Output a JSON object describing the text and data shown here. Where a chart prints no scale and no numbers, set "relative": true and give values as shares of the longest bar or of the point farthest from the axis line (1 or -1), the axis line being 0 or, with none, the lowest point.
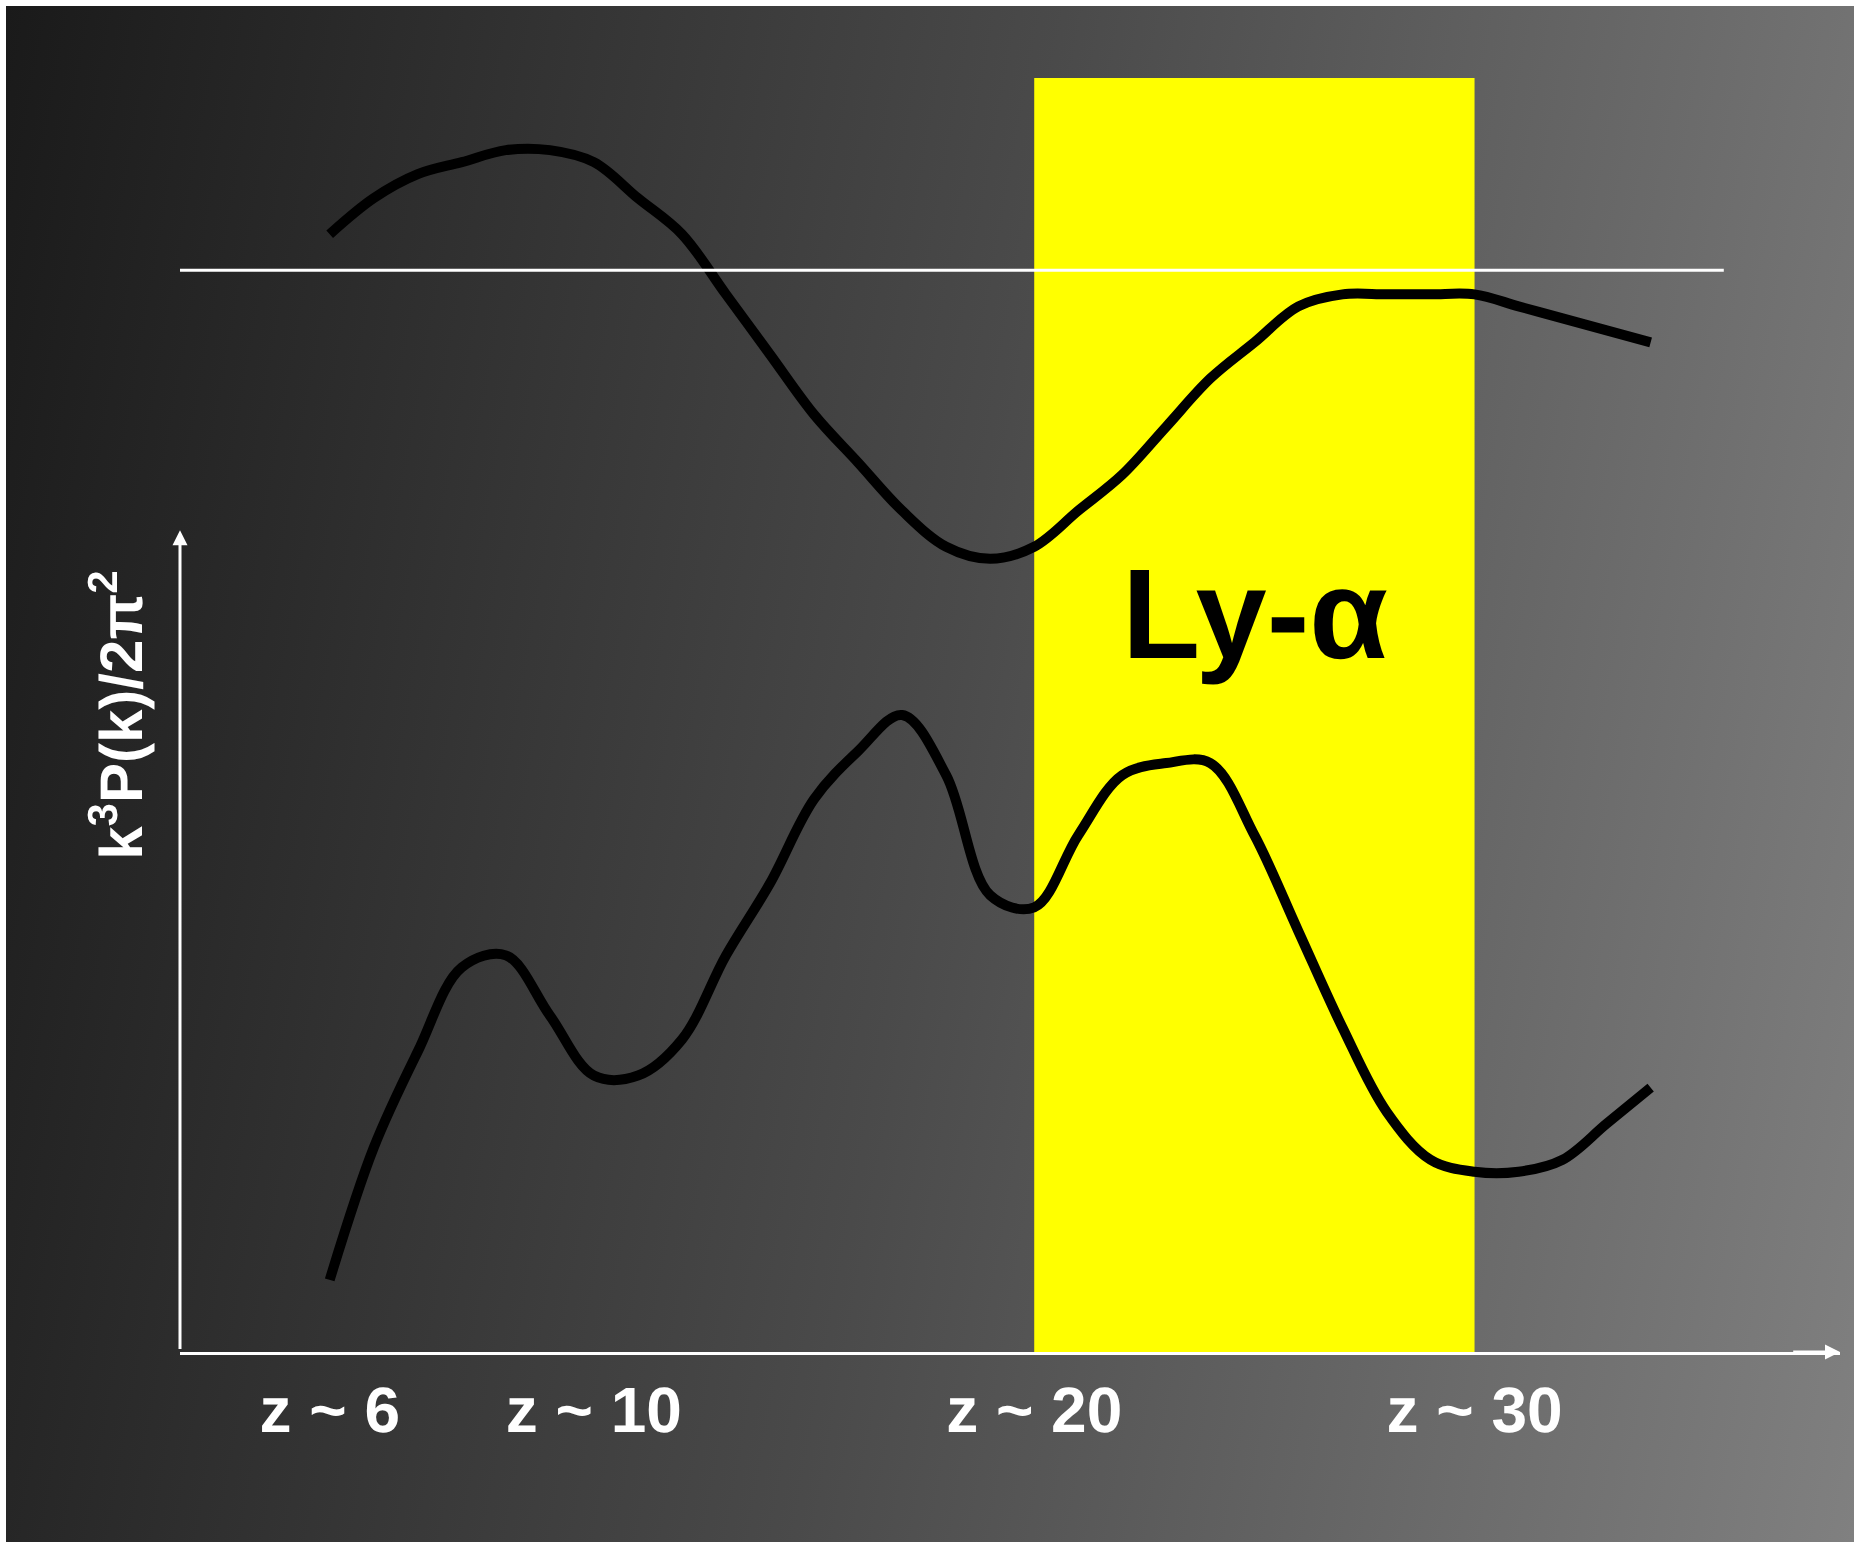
{
  "chart_data": {
    "type": "line",
    "relative": true,
    "ylabel": "k$^{3}$P(k)/2π$^{2}$",
    "categories": [
      "z ~ 6",
      null,
      null,
      null,
      null,
      null,
      "z ~ 10",
      null,
      null,
      null,
      null,
      null,
      null,
      null,
      null,
      null,
      "z ~ 20",
      null,
      null,
      null,
      null,
      null,
      null,
      null,
      null,
      null,
      "z ~ 30",
      null,
      null,
      null,
      null
    ],
    "grid": false,
    "marker": "none",
    "line_style": "solid",
    "series": [
      {
        "color": "#000000",
        "values": [
          0.93,
          0.96,
          0.98,
          0.99,
          1.0,
          1.0,
          0.99,
          0.96,
          0.93,
          0.88,
          0.83,
          0.78,
          0.74,
          0.7,
          0.67,
          0.66,
          0.67,
          0.7,
          0.73,
          0.77,
          0.81,
          0.84,
          0.87,
          0.88,
          0.88,
          0.88,
          0.88,
          0.87,
          0.86,
          0.85,
          0.84
        ]
      },
      {
        "color": "#000000",
        "values": [
          0.06,
          0.17,
          0.25,
          0.32,
          0.33,
          0.28,
          0.23,
          0.23,
          0.26,
          0.33,
          0.39,
          0.46,
          0.5,
          0.53,
          0.48,
          0.38,
          0.37,
          0.43,
          0.48,
          0.49,
          0.49,
          0.43,
          0.35,
          0.27,
          0.2,
          0.16,
          0.15,
          0.15,
          0.16,
          0.19,
          0.22
        ]
      }
    ],
    "bands": [
      {
        "axis": "x",
        "from": "z ~ 20",
        "to": "z ~ 30",
        "label": "Ly-α",
        "color": "#ffff00"
      }
    ],
    "ref_lines": [
      {
        "axis": "y",
        "value": 0.9,
        "color": "#ffffff"
      }
    ]
  }
}
